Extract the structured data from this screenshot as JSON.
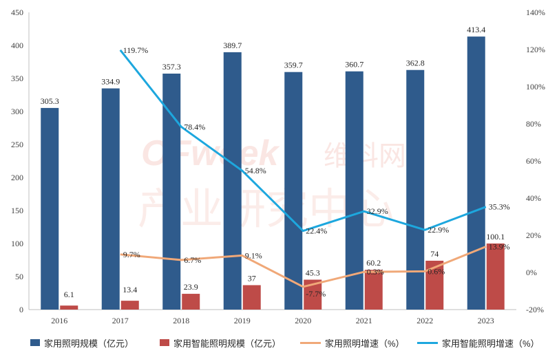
{
  "chart_data": {
    "type": "bar",
    "categories": [
      "2016",
      "2017",
      "2018",
      "2019",
      "2020",
      "2021",
      "2022",
      "2023"
    ],
    "series": [
      {
        "name": "家用照明规模（亿元）",
        "type": "bar",
        "axis": "left",
        "color": "#2F5B8C",
        "values": [
          305.3,
          334.9,
          357.3,
          389.7,
          359.7,
          360.7,
          362.8,
          413.4
        ],
        "labels": [
          "305.3",
          "334.9",
          "357.3",
          "389.7",
          "359.7",
          "360.7",
          "362.8",
          "413.4"
        ]
      },
      {
        "name": "家用智能照明规模（亿元）",
        "type": "bar",
        "axis": "left",
        "color": "#BE4B48",
        "values": [
          6.1,
          13.4,
          23.9,
          37,
          45.3,
          60.2,
          74,
          100.1
        ],
        "labels": [
          "6.1",
          "13.4",
          "23.9",
          "37",
          "45.3",
          "60.2",
          "74",
          "100.1"
        ]
      },
      {
        "name": "家用照明增速（%）",
        "type": "line",
        "axis": "right",
        "color": "#F0A878",
        "values": [
          null,
          9.7,
          6.7,
          9.1,
          -7.7,
          0.3,
          0.6,
          13.9
        ],
        "labels": [
          "",
          "9.7%",
          "6.7%",
          "9.1%",
          "-7.7%",
          "0.3%",
          "0.6%",
          "13.9%"
        ]
      },
      {
        "name": "家用智能照明增速（%）",
        "type": "line",
        "axis": "right",
        "color": "#1DA7DE",
        "values": [
          null,
          119.7,
          78.4,
          54.8,
          22.4,
          32.9,
          22.9,
          35.3
        ],
        "labels": [
          "",
          "119.7%",
          "78.4%",
          "54.8%",
          "22.4%",
          "32.9%",
          "22.9%",
          "35.3%"
        ]
      }
    ],
    "left_axis": {
      "min": 0,
      "max": 450,
      "step": 50,
      "ticks": [
        "0",
        "50",
        "100",
        "150",
        "200",
        "250",
        "300",
        "350",
        "400",
        "450"
      ]
    },
    "right_axis": {
      "min": -20,
      "max": 140,
      "step": 20,
      "ticks": [
        "-20%",
        "0%",
        "20%",
        "40%",
        "60%",
        "80%",
        "100%",
        "120%",
        "140%"
      ]
    },
    "grid": false,
    "legend_position": "bottom"
  },
  "watermark": {
    "brand": "OFweek",
    "brand_cn": "维科网",
    "line2": "产业研究中心"
  }
}
